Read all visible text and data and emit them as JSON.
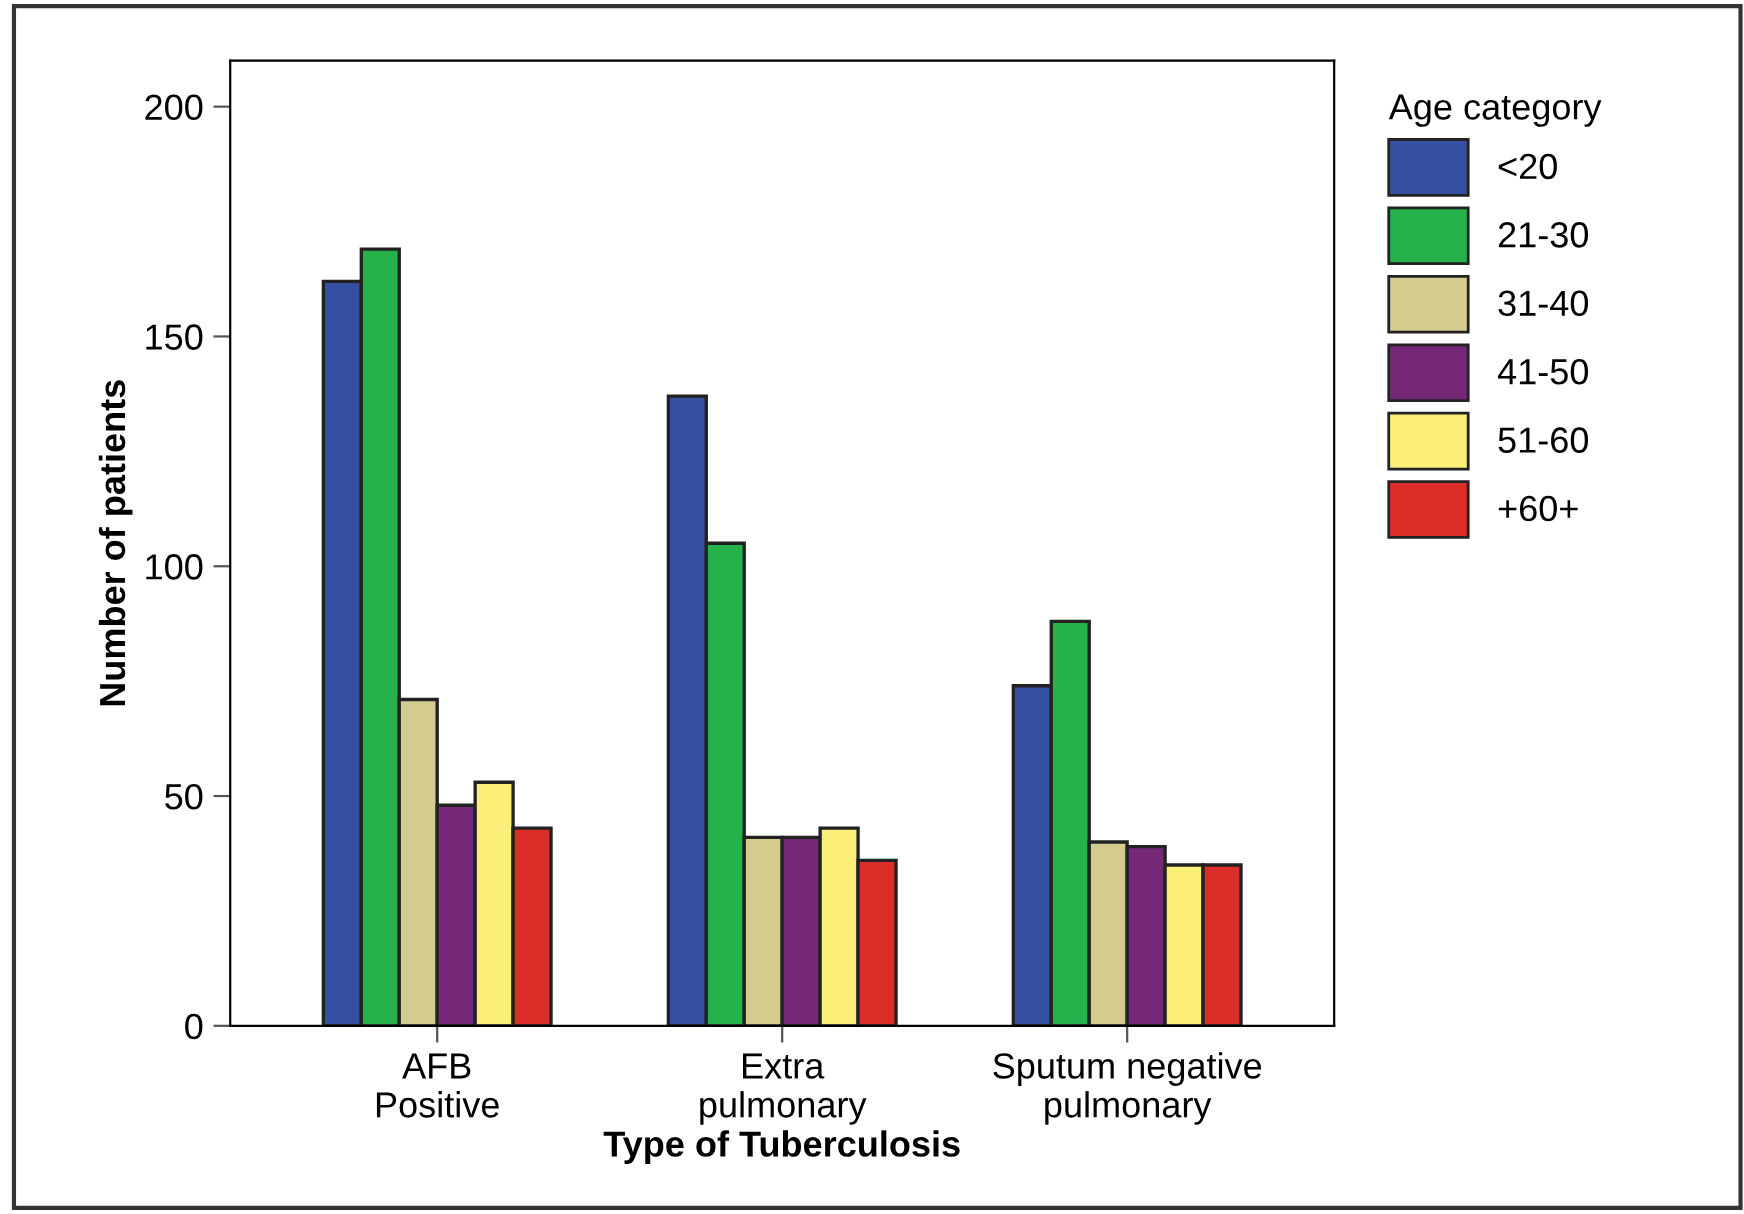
{
  "chart_data": {
    "type": "bar",
    "xlabel": "Type of Tuberculosis",
    "ylabel": "Number of patients",
    "legend_title": "Age category",
    "categories": [
      "AFB\nPositive",
      "Extra\npulmonary",
      "Sputum negative\npulmonary"
    ],
    "series": [
      {
        "name": "<20",
        "color": "#3550a3",
        "values": [
          162,
          137,
          74
        ]
      },
      {
        "name": "21-30",
        "color": "#25b24a",
        "values": [
          169,
          105,
          88
        ]
      },
      {
        "name": "31-40",
        "color": "#d4cc8f",
        "values": [
          71,
          41,
          40
        ]
      },
      {
        "name": "41-50",
        "color": "#752878",
        "values": [
          48,
          41,
          39
        ]
      },
      {
        "name": "51-60",
        "color": "#fbef7a",
        "values": [
          53,
          43,
          35
        ]
      },
      {
        "name": "+60+",
        "color": "#dc2e29",
        "values": [
          43,
          36,
          35
        ]
      }
    ],
    "ylim": [
      0,
      210
    ],
    "yticks": [
      0,
      50,
      100,
      150,
      200
    ],
    "grid": false,
    "legend": "right"
  }
}
